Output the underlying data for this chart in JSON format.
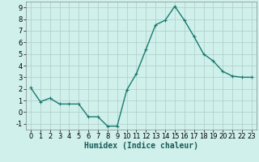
{
  "x": [
    0,
    1,
    2,
    3,
    4,
    5,
    6,
    7,
    8,
    9,
    10,
    11,
    12,
    13,
    14,
    15,
    16,
    17,
    18,
    19,
    20,
    21,
    22,
    23
  ],
  "y": [
    2.1,
    0.9,
    1.2,
    0.7,
    0.7,
    0.7,
    -0.4,
    -0.4,
    -1.2,
    -1.2,
    1.9,
    3.3,
    5.4,
    7.5,
    7.9,
    9.1,
    7.9,
    6.5,
    5.0,
    4.4,
    3.5,
    3.1,
    3.0,
    3.0
  ],
  "line_color": "#1a7a6e",
  "marker": "+",
  "marker_size": 3,
  "linewidth": 1.0,
  "xlabel": "Humidex (Indice chaleur)",
  "xlim": [
    -0.5,
    23.5
  ],
  "ylim": [
    -1.5,
    9.5
  ],
  "yticks": [
    -1,
    0,
    1,
    2,
    3,
    4,
    5,
    6,
    7,
    8,
    9
  ],
  "xticks": [
    0,
    1,
    2,
    3,
    4,
    5,
    6,
    7,
    8,
    9,
    10,
    11,
    12,
    13,
    14,
    15,
    16,
    17,
    18,
    19,
    20,
    21,
    22,
    23
  ],
  "bg_color": "#cff0eb",
  "grid_color": "#b0ccc8",
  "xlabel_fontsize": 7,
  "tick_fontsize": 6
}
